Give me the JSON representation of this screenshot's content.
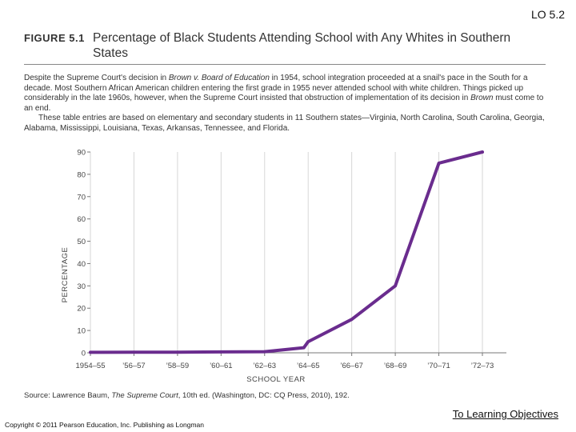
{
  "header": {
    "lo_label": "LO 5.2"
  },
  "figure": {
    "number": "FIGURE 5.1",
    "title": "Percentage of Black Students Attending School with Any Whites in Southern States",
    "caption_parts": [
      "Despite the Supreme Court's decision in ",
      "Brown v. Board of Education",
      " in 1954, school integration proceeded at a snail's pace in the South for a decade. Most Southern African American children entering the first grade in 1955 never attended school with white children. Things picked up considerably in the late 1960s, however, when the Supreme Court insisted that obstruction of implementation of its decision in ",
      "Brown",
      " must come to an end."
    ],
    "note": "These table entries are based on elementary and secondary students in 11 Southern states—Virginia, North Carolina, South Carolina, Georgia, Alabama, Mississippi, Louisiana, Texas, Arkansas, Tennessee, and Florida.",
    "source_parts": [
      "Source: Lawrence Baum, ",
      "The Supreme Court",
      ", 10th ed. (Washington, DC: CQ Press, 2010), 192."
    ]
  },
  "chart_data": {
    "type": "line",
    "title": "Percentage of Black Students Attending School with Any Whites in Southern States",
    "xlabel": "SCHOOL YEAR",
    "ylabel": "PERCENTAGE",
    "ylim": [
      0,
      90
    ],
    "yticks": [
      0,
      10,
      20,
      30,
      40,
      50,
      60,
      70,
      80,
      90
    ],
    "categories": [
      "1954–55",
      "’56–57",
      "’58–59",
      "’60–61",
      "’62–63",
      "’64–65",
      "’66–67",
      "’68–69",
      "’70–71",
      "’72–73"
    ],
    "grid": true,
    "series": [
      {
        "name": "Percentage",
        "color": "#6a2c8e",
        "points": [
          {
            "x": 0,
            "y": 0.2
          },
          {
            "x": 1,
            "y": 0.3
          },
          {
            "x": 2,
            "y": 0.3
          },
          {
            "x": 3,
            "y": 0.4
          },
          {
            "x": 4,
            "y": 0.5
          },
          {
            "x": 4.9,
            "y": 2.3
          },
          {
            "x": 5,
            "y": 5
          },
          {
            "x": 6,
            "y": 15
          },
          {
            "x": 7,
            "y": 30
          },
          {
            "x": 8,
            "y": 85
          },
          {
            "x": 9,
            "y": 90
          }
        ]
      }
    ]
  },
  "footer": {
    "copyright": "Copyright © 2011 Pearson Education, Inc. Publishing as Longman",
    "objectives_link": "To Learning Objectives"
  }
}
